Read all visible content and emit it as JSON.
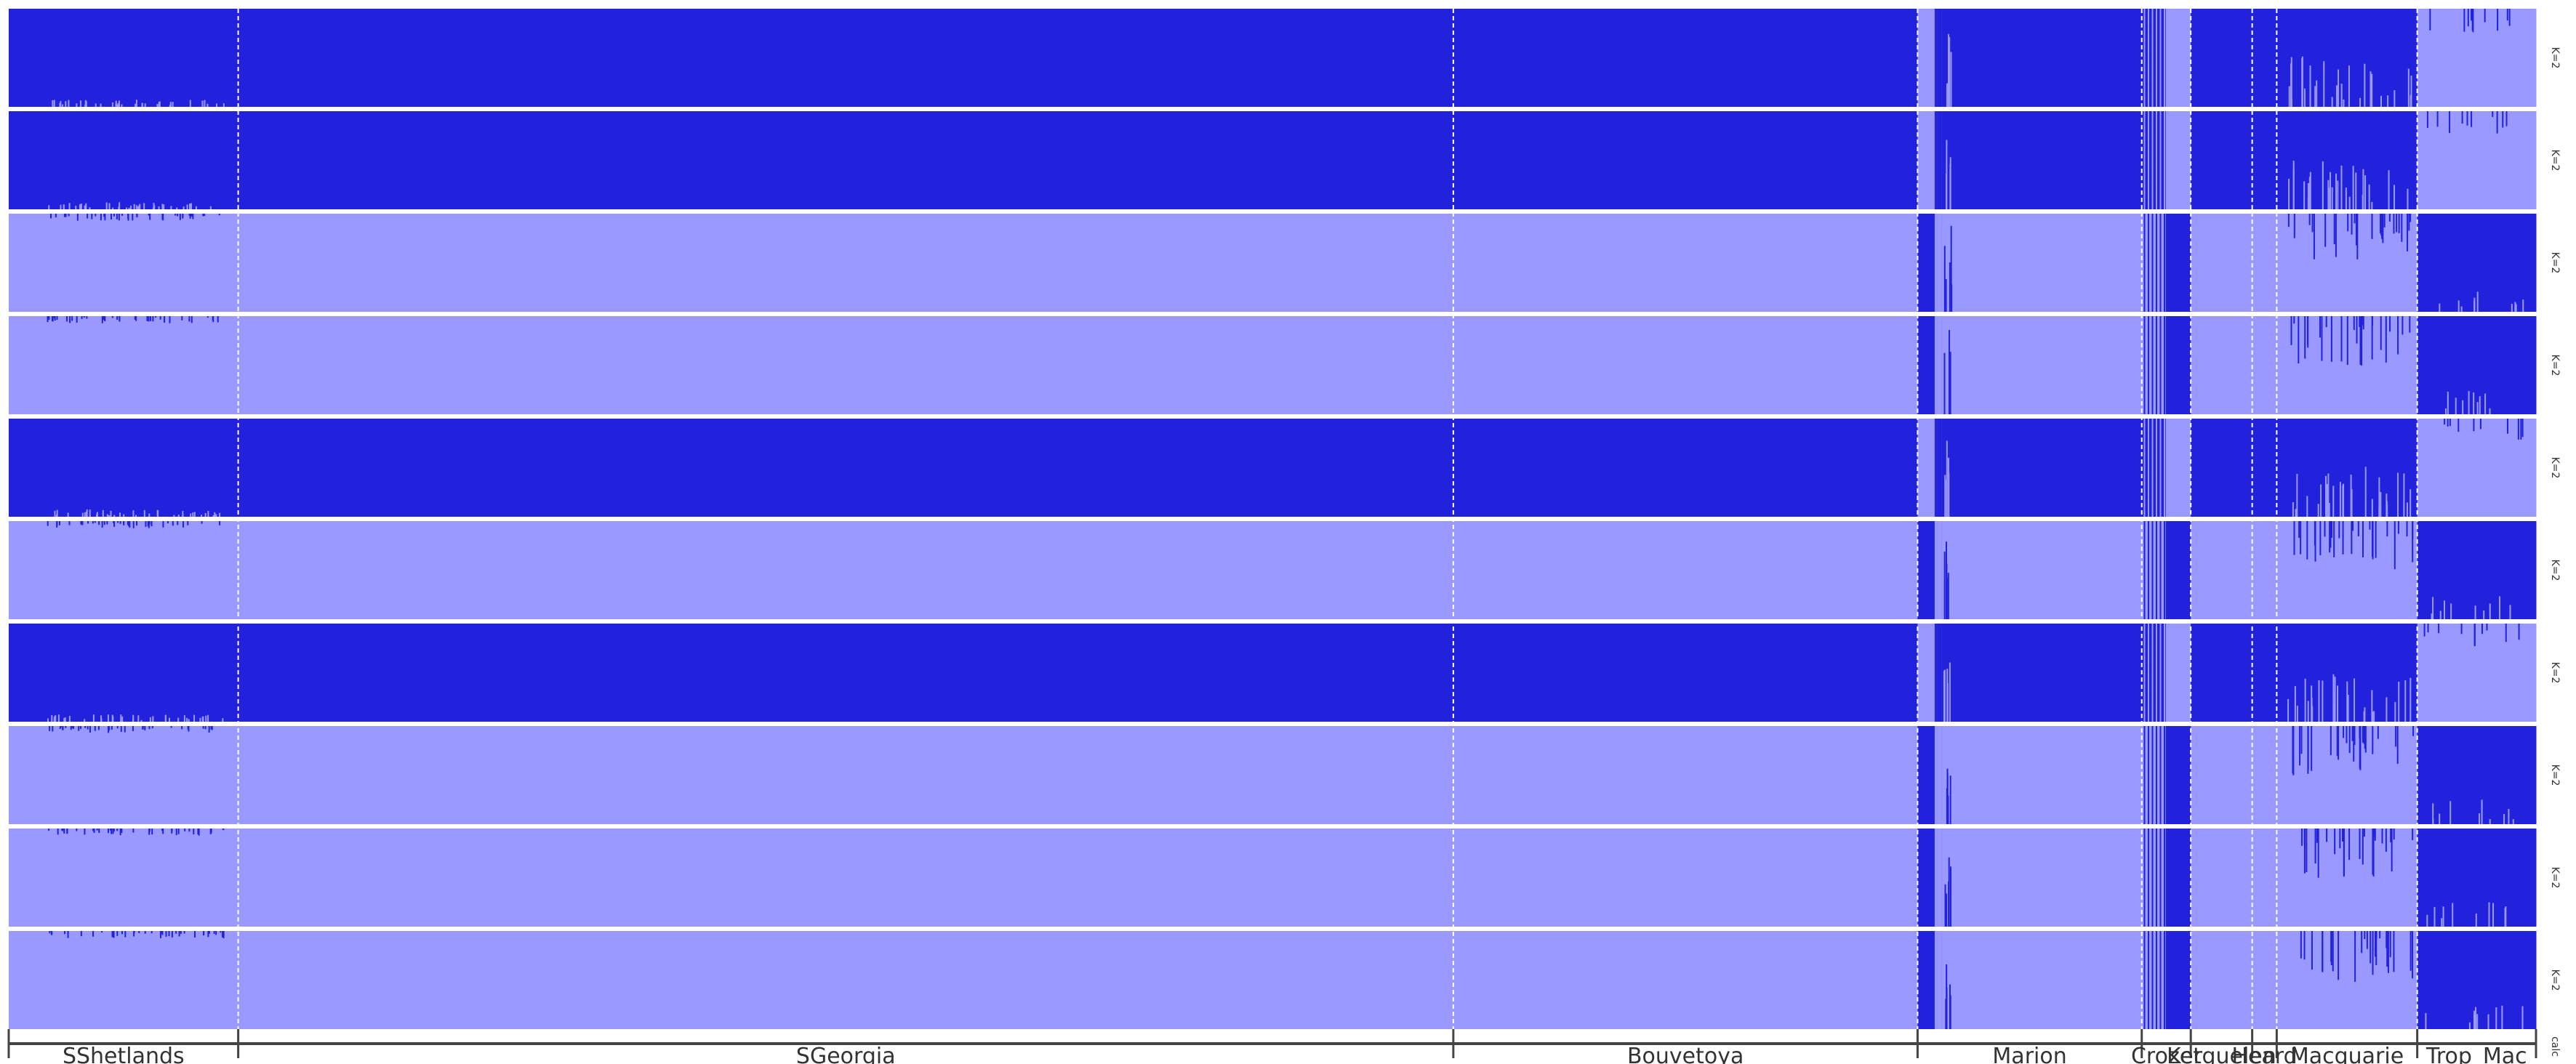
{
  "chart_data": {
    "type": "stacked-bar",
    "description_k": "K=2",
    "title": "",
    "xlabel": "",
    "ylabel": "",
    "ylim": [
      0,
      1
    ],
    "cluster_colors": [
      "#2222dd",
      "#9999ff"
    ],
    "populations": [
      {
        "name": "SShetlands",
        "start": 0.0,
        "end": 0.0908
      },
      {
        "name": "SGeorgia",
        "start": 0.0908,
        "end": 0.5716
      },
      {
        "name": "Bouvetoya",
        "start": 0.5716,
        "end": 0.7553
      },
      {
        "name": "Marion",
        "start": 0.7553,
        "end": 0.844
      },
      {
        "name": "Crozet",
        "start": 0.844,
        "end": 0.8634
      },
      {
        "name": "Kerguelen",
        "start": 0.8634,
        "end": 0.8877
      },
      {
        "name": "Heard",
        "start": 0.8877,
        "end": 0.8974
      },
      {
        "name": "Macquarie",
        "start": 0.8974,
        "end": 0.953
      },
      {
        "name": "Trop_Mac",
        "start": 0.953,
        "end": 1.0
      }
    ],
    "rows": [
      {
        "label": "K=2",
        "dark_on": "left",
        "dark_top": 1
      },
      {
        "label": "K=2",
        "dark_on": "left",
        "dark_top": 1
      },
      {
        "label": "K=2",
        "dark_on": "right",
        "dark_top": 0
      },
      {
        "label": "K=2",
        "dark_on": "right",
        "dark_top": 0
      },
      {
        "label": "K=2",
        "dark_on": "left",
        "dark_top": 1
      },
      {
        "label": "K=2",
        "dark_on": "right",
        "dark_top": 0
      },
      {
        "label": "K=2",
        "dark_on": "left",
        "dark_top": 1
      },
      {
        "label": "K=2",
        "dark_on": "right",
        "dark_top": 0
      },
      {
        "label": "K=2",
        "dark_on": "right",
        "dark_top": 0
      },
      {
        "label": "K=2",
        "dark_on": "right",
        "dark_top": 0
      }
    ],
    "segments": [
      {
        "start": 0.0,
        "end": 0.7553,
        "group": "A"
      },
      {
        "start": 0.7553,
        "end": 0.7618,
        "group": "B"
      },
      {
        "start": 0.7618,
        "end": 0.765,
        "group": "Bmix"
      },
      {
        "start": 0.765,
        "end": 0.844,
        "group": "A"
      },
      {
        "start": 0.844,
        "end": 0.8535,
        "group": "Amix"
      },
      {
        "start": 0.8535,
        "end": 0.8634,
        "group": "B"
      },
      {
        "start": 0.8634,
        "end": 0.953,
        "group": "A"
      },
      {
        "start": 0.953,
        "end": 1.0,
        "group": "B"
      }
    ],
    "strip_label": "calc"
  }
}
